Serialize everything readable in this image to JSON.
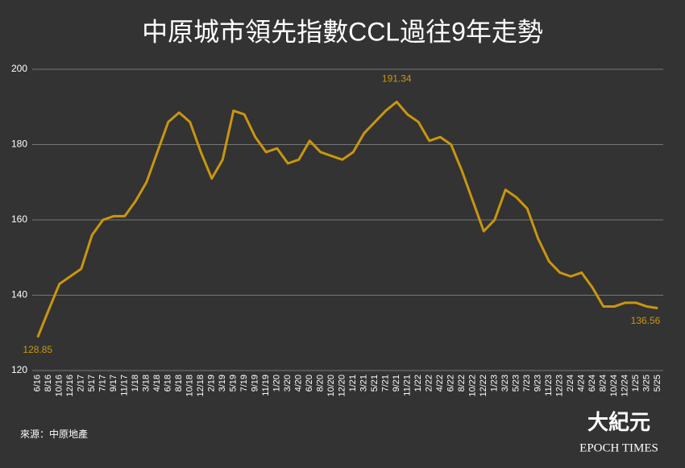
{
  "chart_data": {
    "type": "line",
    "title": "中原城市領先指數CCL過往9年走勢",
    "categories": [
      "6/16",
      "8/16",
      "10/16",
      "12/16",
      "2/17",
      "5/17",
      "7/17",
      "9/17",
      "11/17",
      "1/18",
      "3/18",
      "4/18",
      "6/18",
      "8/18",
      "10/18",
      "12/18",
      "2/19",
      "3/19",
      "5/19",
      "7/19",
      "9/19",
      "11/19",
      "1/20",
      "3/20",
      "4/20",
      "6/20",
      "8/20",
      "10/20",
      "12/20",
      "1/21",
      "3/21",
      "5/21",
      "7/21",
      "9/21",
      "11/21",
      "1/22",
      "2/22",
      "4/22",
      "6/22",
      "8/22",
      "10/22",
      "12/22",
      "1/23",
      "3/23",
      "5/23",
      "7/23",
      "9/23",
      "11/23",
      "12/23",
      "2/24",
      "4/24",
      "6/24",
      "8/24",
      "10/24",
      "12/24",
      "1/25",
      "3/25",
      "5/25"
    ],
    "series": [
      {
        "name": "CCL",
        "color": "#c9960f",
        "values": [
          128.85,
          136,
          143,
          145,
          147,
          156,
          160,
          161,
          161,
          165,
          170,
          178,
          186,
          188.5,
          186,
          178,
          171,
          176,
          189,
          188,
          182,
          178,
          179,
          175,
          176,
          181,
          178,
          177,
          176,
          178,
          183,
          186,
          189,
          191.34,
          188,
          186,
          181,
          182,
          180,
          173,
          165,
          157,
          160,
          168,
          166,
          163,
          155,
          149,
          146,
          145,
          146,
          142,
          137,
          137,
          138,
          138,
          137,
          136.56
        ]
      }
    ],
    "annotations": [
      {
        "category": "6/16",
        "value": 128.85
      },
      {
        "category": "9/21",
        "value": 191.34
      },
      {
        "category": "5/25",
        "value": 136.56
      }
    ],
    "ylim": [
      120,
      200
    ],
    "yticks": [
      120,
      140,
      160,
      180,
      200
    ],
    "grid": true,
    "source": "來源：中原地產",
    "logo": {
      "chinese": "大紀元",
      "english": "EPOCH TIMES"
    }
  }
}
